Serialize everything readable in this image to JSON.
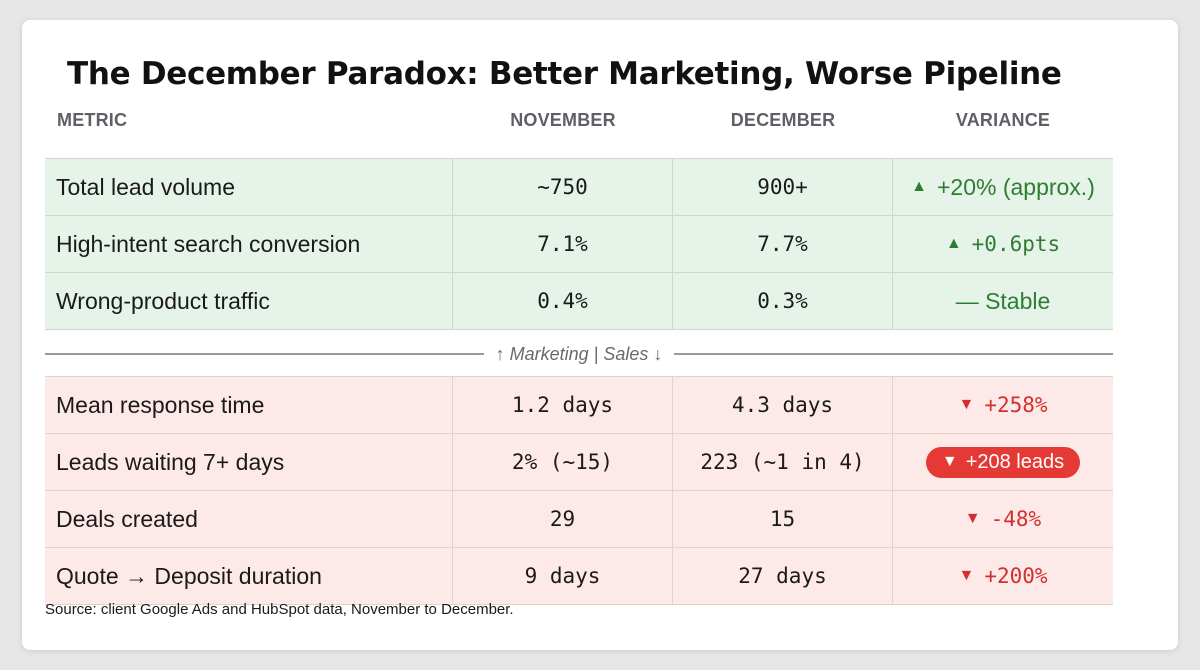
{
  "title": "The December Paradox: Better Marketing, Worse Pipeline",
  "columns": [
    "METRIC",
    "NOVEMBER",
    "DECEMBER",
    "VARIANCE"
  ],
  "marketing_rows": [
    {
      "metric": "Total lead volume",
      "november": "~750",
      "december": "900+",
      "variance": "+20% (approx.)",
      "direction": "up"
    },
    {
      "metric": "High-intent search conversion",
      "november": "7.1%",
      "december": "7.7%",
      "variance": "+0.6pts",
      "direction": "up"
    },
    {
      "metric": "Wrong-product traffic",
      "november": "0.4%",
      "december": "0.3%",
      "variance": "— Stable",
      "direction": "flat"
    }
  ],
  "divider_label": "↑ Marketing | Sales ↓",
  "sales_rows": [
    {
      "metric": "Mean response time",
      "november": "1.2 days",
      "december": "4.3 days",
      "variance": "+258%",
      "direction": "down"
    },
    {
      "metric": "Leads waiting 7+ days",
      "november": "2% (~15)",
      "december": "223 (~1 in 4)",
      "variance": "+208 leads",
      "direction": "down",
      "highlight": true
    },
    {
      "metric": "Deals created",
      "november": "29",
      "december": "15",
      "variance": "-48%",
      "direction": "down"
    },
    {
      "metric": "Quote → Deposit duration",
      "november": "9 days",
      "december": "27 days",
      "variance": "+200%",
      "direction": "down"
    }
  ],
  "source": "Source: client Google Ads and HubSpot data, November to December.",
  "colors": {
    "positive": "#2e7d32",
    "negative": "#d32f2f",
    "marketing_bg": "#e6f3e9",
    "sales_bg": "#fde9e7",
    "badge_bg": "#e53935"
  },
  "icons": {
    "up": "triangle-up-icon",
    "down": "triangle-down-icon"
  }
}
